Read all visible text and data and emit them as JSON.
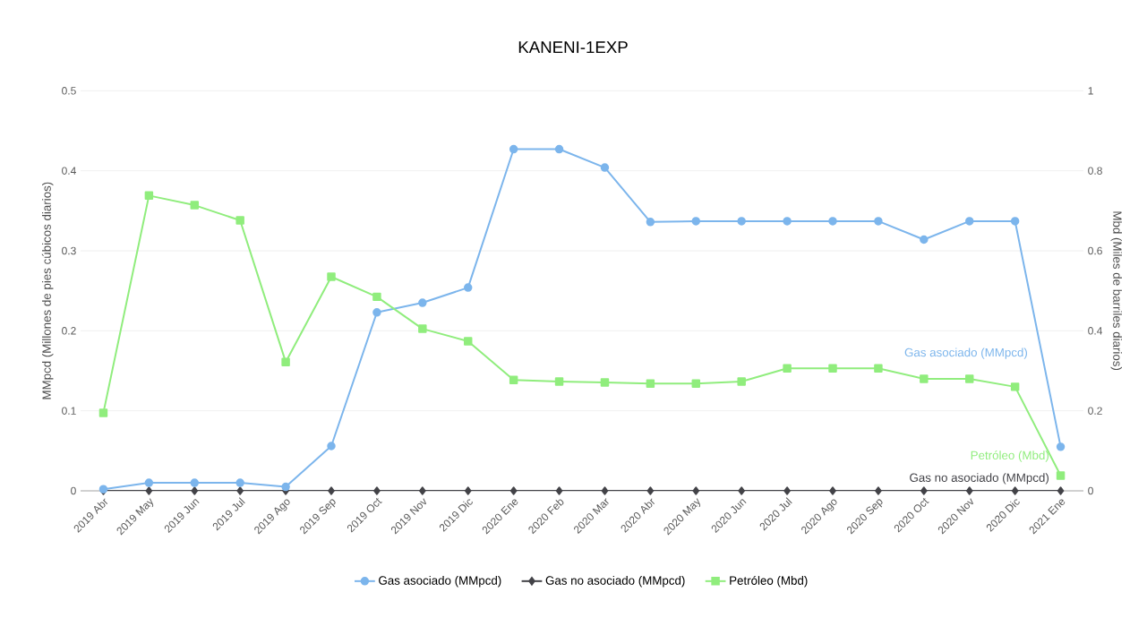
{
  "chart_data": {
    "type": "line",
    "title": "KANENI-1EXP",
    "ylabel": "MMpcd (Millones de pies cúbicos diarios)",
    "y2label": "Mbd (Miles de barriles diarios)",
    "categories": [
      "2019 Abr",
      "2019 May",
      "2019 Jun",
      "2019 Jul",
      "2019 Ago",
      "2019 Sep",
      "2019 Oct",
      "2019 Nov",
      "2019 Dic",
      "2020 Ene",
      "2020 Feb",
      "2020 Mar",
      "2020 Abr",
      "2020 May",
      "2020 Jun",
      "2020 Jul",
      "2020 Ago",
      "2020 Sep",
      "2020 Oct",
      "2020 Nov",
      "2020 Dic",
      "2021 Ene"
    ],
    "series": [
      {
        "name": "Gas asociado (MMpcd)",
        "color": "#7cb5ec",
        "marker": "circle",
        "values": [
          0.002,
          0.01,
          0.01,
          0.01,
          0.005,
          0.056,
          0.223,
          0.235,
          0.254,
          0.427,
          0.427,
          0.404,
          0.336,
          0.337,
          0.337,
          0.337,
          0.337,
          0.337,
          0.314,
          0.337,
          0.337,
          0.055
        ]
      },
      {
        "name": "Gas no asociado (MMpcd)",
        "color": "#434348",
        "marker": "diamond",
        "values": [
          0,
          0,
          0,
          0,
          0,
          0,
          0,
          0,
          0,
          0,
          0,
          0,
          0,
          0,
          0,
          0,
          0,
          0,
          0,
          0,
          0,
          0
        ]
      },
      {
        "name": "Petróleo (Mbd)",
        "color": "#90ed7d",
        "marker": "square",
        "axis": "y2",
        "values": [
          0.195,
          0.738,
          0.714,
          0.676,
          0.322,
          0.535,
          0.485,
          0.405,
          0.374,
          0.277,
          0.273,
          0.271,
          0.268,
          0.268,
          0.273,
          0.306,
          0.306,
          0.306,
          0.28,
          0.28,
          0.26,
          0.038
        ]
      }
    ],
    "ylim": [
      0,
      0.5
    ],
    "yticks": [
      0,
      0.1,
      0.2,
      0.3,
      0.4,
      0.5
    ],
    "y2lim": [
      0,
      1
    ],
    "y2ticks": [
      0,
      0.2,
      0.4,
      0.6,
      0.8,
      1
    ],
    "grid": "y",
    "legend": "bottom",
    "line_style": "solid"
  }
}
